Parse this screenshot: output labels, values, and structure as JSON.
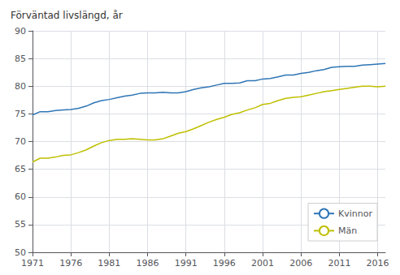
{
  "chart_data": {
    "type": "line",
    "title": "Förväntad livslängd, år",
    "x": [
      1971,
      1972,
      1973,
      1974,
      1975,
      1976,
      1977,
      1978,
      1979,
      1980,
      1981,
      1982,
      1983,
      1984,
      1985,
      1986,
      1987,
      1988,
      1989,
      1990,
      1991,
      1992,
      1993,
      1994,
      1995,
      1996,
      1997,
      1998,
      1999,
      2000,
      2001,
      2002,
      2003,
      2004,
      2005,
      2006,
      2007,
      2008,
      2009,
      2010,
      2011,
      2012,
      2013,
      2014,
      2015,
      2016,
      2017
    ],
    "series": [
      {
        "name": "Kvinnor",
        "color": "#2E75B6",
        "values": [
          74.8,
          75.4,
          75.4,
          75.6,
          75.7,
          75.8,
          76.0,
          76.4,
          77.0,
          77.4,
          77.6,
          77.9,
          78.2,
          78.4,
          78.7,
          78.8,
          78.8,
          78.9,
          78.8,
          78.8,
          79.0,
          79.4,
          79.7,
          79.9,
          80.2,
          80.5,
          80.5,
          80.6,
          81.0,
          81.0,
          81.3,
          81.4,
          81.7,
          82.0,
          82.0,
          82.3,
          82.5,
          82.8,
          83.0,
          83.4,
          83.5,
          83.6,
          83.6,
          83.8,
          83.9,
          84.0,
          84.1
        ]
      },
      {
        "name": "Män",
        "color": "#BFBF00",
        "values": [
          66.3,
          67.0,
          67.0,
          67.2,
          67.5,
          67.6,
          68.0,
          68.5,
          69.2,
          69.8,
          70.2,
          70.4,
          70.4,
          70.5,
          70.4,
          70.3,
          70.3,
          70.5,
          71.0,
          71.5,
          71.8,
          72.3,
          72.9,
          73.5,
          74.0,
          74.4,
          74.9,
          75.2,
          75.7,
          76.1,
          76.7,
          76.9,
          77.4,
          77.8,
          78.0,
          78.1,
          78.4,
          78.7,
          79.0,
          79.2,
          79.4,
          79.6,
          79.8,
          80.0,
          80.0,
          79.9,
          80.0
        ]
      }
    ],
    "xlim": [
      1971,
      2017
    ],
    "ylim": [
      50,
      90
    ],
    "xticks": [
      1971,
      1976,
      1981,
      1986,
      1991,
      1996,
      2001,
      2006,
      2011,
      2016
    ],
    "yticks": [
      50,
      55,
      60,
      65,
      70,
      75,
      80,
      85,
      90
    ],
    "grid": true,
    "legend": "lower right"
  }
}
